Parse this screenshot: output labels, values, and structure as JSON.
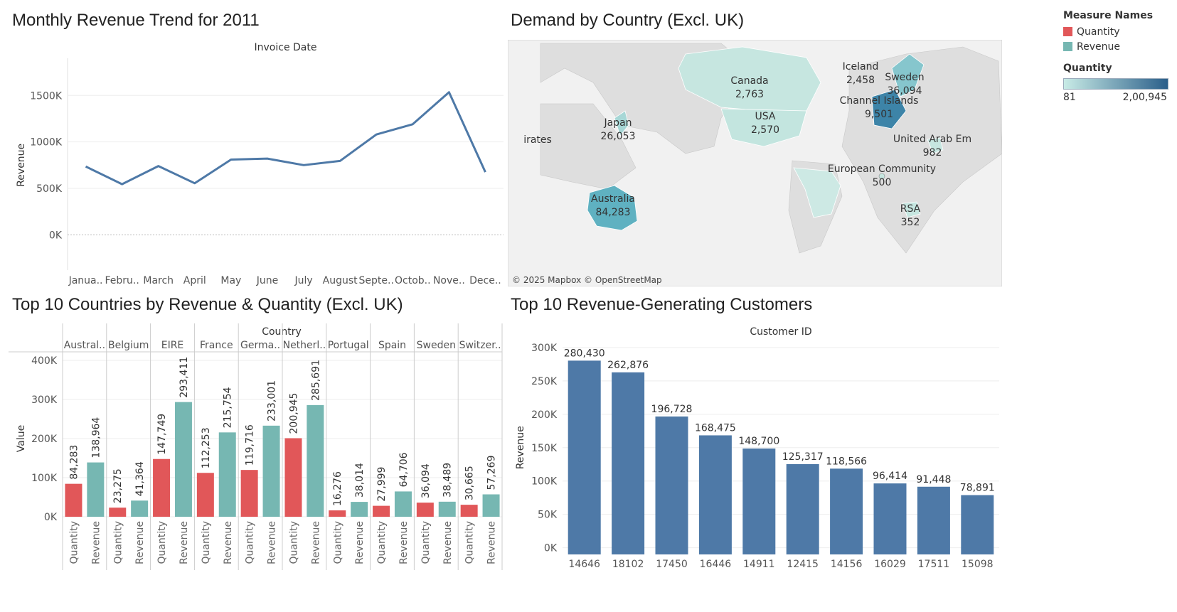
{
  "line": {
    "title": "Monthly Revenue Trend for 2011",
    "header": "Invoice Date",
    "ylabel": "Revenue",
    "ticks": [
      "0K",
      "500K",
      "1000K",
      "1500K"
    ]
  },
  "map": {
    "title": "Demand by Country (Excl. UK)",
    "attribution": "© 2025 Mapbox © OpenStreetMap",
    "labels": [
      {
        "name": "Canada",
        "value": "2,763"
      },
      {
        "name": "USA",
        "value": "2,570"
      },
      {
        "name": "Japan",
        "value": "26,053"
      },
      {
        "name": "irates",
        "value": ""
      },
      {
        "name": "Australia",
        "value": "84,283"
      },
      {
        "name": "Iceland",
        "value": "2,458"
      },
      {
        "name": "Sweden",
        "value": "36,094"
      },
      {
        "name": "Channel Islands",
        "value": "9,501"
      },
      {
        "name": "United Arab Em",
        "value": "982"
      },
      {
        "name": "European Community",
        "value": "500"
      },
      {
        "name": "RSA",
        "value": "352"
      }
    ]
  },
  "legend": {
    "measure_header": "Measure Names",
    "items": [
      {
        "label": "Quantity",
        "color": "#e15759"
      },
      {
        "label": "Revenue",
        "color": "#76b7b2"
      }
    ],
    "quantity_header": "Quantity",
    "min": "81",
    "max": "2,00,945",
    "gradient_from": "#c8ebe6",
    "gradient_to": "#2b5f8a"
  },
  "colors": {
    "line": "#4e79a7",
    "quantity": "#e15759",
    "revenue": "#76b7b2",
    "customer_bar": "#4e79a7"
  },
  "grouped": {
    "title": "Top 10 Countries by Revenue & Quantity (Excl. UK)",
    "header": "Country",
    "ylabel": "Value",
    "ticks": [
      "0K",
      "100K",
      "200K",
      "300K",
      "400K"
    ]
  },
  "customers": {
    "title": "Top 10 Revenue-Generating Customers",
    "header": "Customer ID",
    "ylabel": "Revenue",
    "ticks": [
      "0K",
      "50K",
      "100K",
      "150K",
      "200K",
      "250K",
      "300K"
    ]
  },
  "chart_data": [
    {
      "type": "line",
      "title": "Monthly Revenue Trend for 2011",
      "xlabel": "Invoice Date",
      "ylabel": "Revenue",
      "categories": [
        "Janua..",
        "Febru..",
        "March",
        "April",
        "May",
        "June",
        "July",
        "August",
        "Septe..",
        "Octob..",
        "Nove..",
        "Dece.."
      ],
      "values": [
        735000,
        545000,
        740000,
        555000,
        810000,
        820000,
        750000,
        795000,
        1080000,
        1190000,
        1535000,
        675000
      ],
      "ylim": [
        -380000,
        1900000
      ]
    },
    {
      "type": "bar",
      "title": "Top 10 Countries by Revenue & Quantity (Excl. UK)",
      "xlabel": "Country",
      "ylabel": "Value",
      "categories": [
        "Austral..",
        "Belgium",
        "EIRE",
        "France",
        "Germa..",
        "Netherl..",
        "Portugal",
        "Spain",
        "Sweden",
        "Switzer.."
      ],
      "sublabels": [
        "Quantity",
        "Revenue"
      ],
      "series": [
        {
          "name": "Quantity",
          "values": [
            84283,
            23275,
            147749,
            112253,
            119716,
            200945,
            16276,
            27999,
            36094,
            30665
          ],
          "labels": [
            "84,283",
            "23,275",
            "147,749",
            "112,253",
            "119,716",
            "200,945",
            "16,276",
            "27,999",
            "36,094",
            "30,665"
          ]
        },
        {
          "name": "Revenue",
          "values": [
            138964,
            41364,
            293411,
            215754,
            233001,
            285691,
            38014,
            64706,
            38489,
            57269
          ],
          "labels": [
            "138,964",
            "41,364",
            "293,411",
            "215,754",
            "233,001",
            "285,691",
            "38,014",
            "64,706",
            "38,489",
            "57,269"
          ]
        }
      ],
      "ylim": [
        0,
        400000
      ]
    },
    {
      "type": "bar",
      "title": "Top 10 Revenue-Generating Customers",
      "xlabel": "Customer ID",
      "ylabel": "Revenue",
      "categories": [
        "14646",
        "18102",
        "17450",
        "16446",
        "14911",
        "12415",
        "14156",
        "16029",
        "17511",
        "15098"
      ],
      "values": [
        280430,
        262876,
        196728,
        168475,
        148700,
        125317,
        118566,
        96414,
        91448,
        78891
      ],
      "labels": [
        "280,430",
        "262,876",
        "196,728",
        "168,475",
        "148,700",
        "125,317",
        "118,566",
        "96,414",
        "91,448",
        "78,891"
      ],
      "ylim": [
        -10000,
        300000
      ]
    }
  ]
}
